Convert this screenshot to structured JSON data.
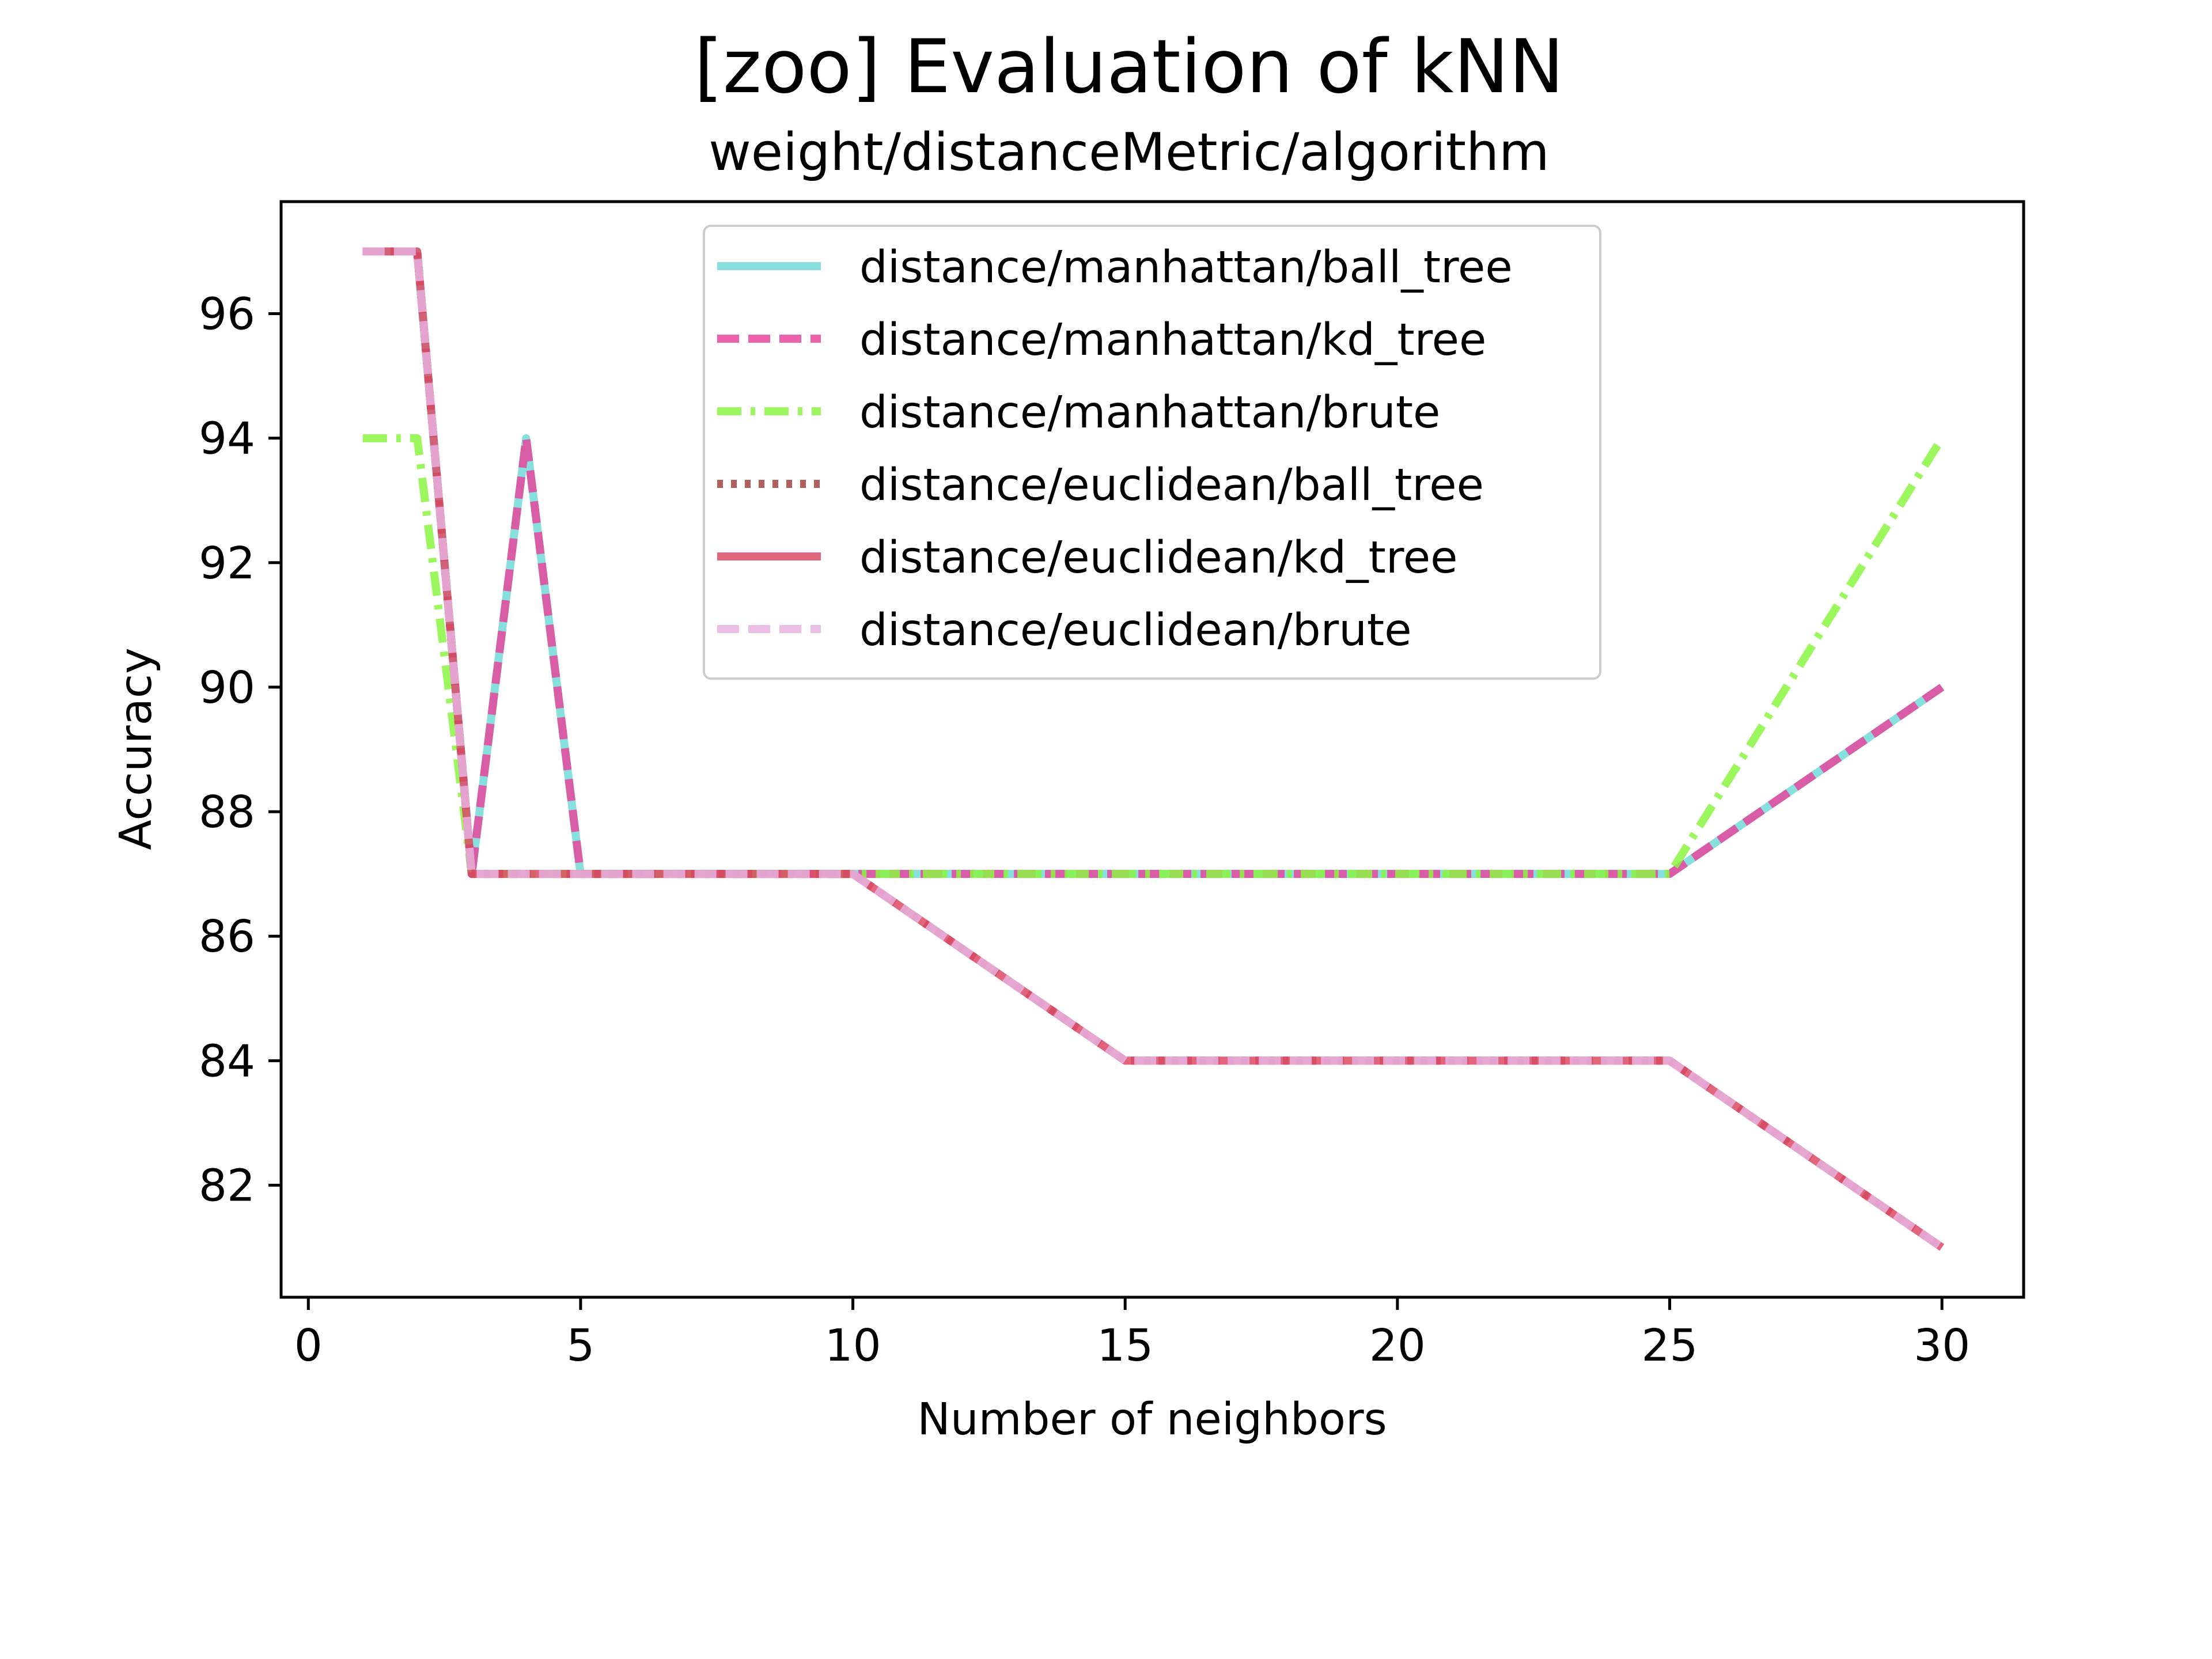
{
  "chart_data": {
    "type": "line",
    "title": "[zoo] Evaluation of kNN",
    "subtitle": "weight/distanceMetric/algorithm",
    "xlabel": "Number of neighbors",
    "ylabel": "Accuracy",
    "xlim": [
      -0.5,
      31.5
    ],
    "ylim": [
      80.2,
      97.8
    ],
    "xticks": [
      0,
      5,
      10,
      15,
      20,
      25,
      30
    ],
    "yticks": [
      82,
      84,
      86,
      88,
      90,
      92,
      94,
      96
    ],
    "x": [
      1,
      2,
      3,
      4,
      5,
      10,
      15,
      25,
      30
    ],
    "grid": false,
    "legend_position": "top-center",
    "series": [
      {
        "name": "distance/manhattan/ball_tree",
        "color": "#72dad8",
        "dash": "solid",
        "values": [
          97,
          97,
          87,
          94,
          87,
          87,
          87,
          87,
          90
        ]
      },
      {
        "name": "distance/manhattan/kd_tree",
        "color": "#e8459c",
        "dash": "dashed",
        "values": [
          97,
          97,
          87,
          94,
          87,
          87,
          87,
          87,
          90
        ]
      },
      {
        "name": "distance/manhattan/brute",
        "color": "#8bf542",
        "dash": "dashdot",
        "values": [
          94,
          94,
          87,
          87,
          87,
          87,
          87,
          87,
          94
        ]
      },
      {
        "name": "distance/euclidean/ball_tree",
        "color": "#a53f3f",
        "dash": "dotted",
        "values": [
          97,
          97,
          87,
          87,
          87,
          87,
          84,
          84,
          81
        ]
      },
      {
        "name": "distance/euclidean/kd_tree",
        "color": "#dc4a66",
        "dash": "solid",
        "values": [
          97,
          97,
          87,
          87,
          87,
          87,
          84,
          84,
          81
        ]
      },
      {
        "name": "distance/euclidean/brute",
        "color": "#e6b3e0",
        "dash": "dashed",
        "values": [
          97,
          97,
          87,
          87,
          87,
          87,
          84,
          84,
          81
        ]
      }
    ]
  }
}
